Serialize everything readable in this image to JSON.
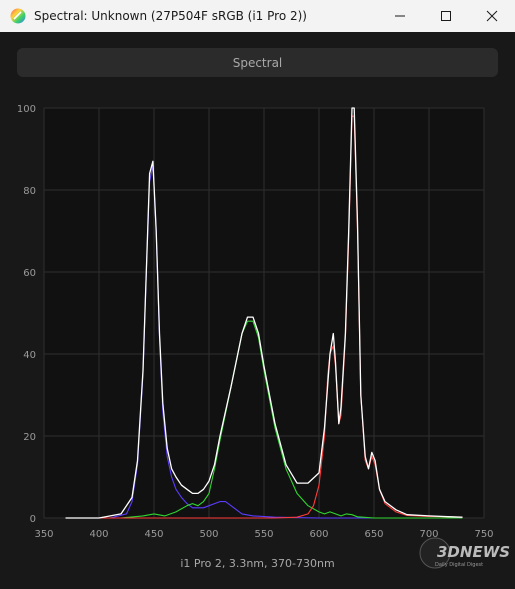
{
  "window": {
    "title": "Spectral: Unknown (27P504F sRGB (i1 Pro 2))",
    "icon": "spectral-app-icon",
    "controls": [
      "minimize-icon",
      "maximize-icon",
      "close-icon"
    ]
  },
  "header": {
    "label": "Spectral"
  },
  "caption": "i1 Pro 2, 3.3nm, 370-730nm",
  "watermark": {
    "main": "3DNEWS",
    "sub": "Daily Digital Digest"
  },
  "colors": {
    "background": "#181818",
    "plot_background": "#111111",
    "grid": "#2e2e2e",
    "total": "#ffffff",
    "blue": "#5a3cff",
    "green": "#2fd62f",
    "red": "#ff3a3a"
  },
  "chart_data": {
    "type": "line",
    "title": "",
    "xlabel": "",
    "ylabel": "",
    "xlim": [
      350,
      750
    ],
    "ylim": [
      0,
      100
    ],
    "grid": true,
    "x_ticks": [
      "350",
      "400",
      "450",
      "500",
      "550",
      "600",
      "650",
      "700",
      "750"
    ],
    "y_ticks": [
      "0",
      "20",
      "40",
      "60",
      "80",
      "100"
    ],
    "series": [
      {
        "color": "#ffffff",
        "x": [
          370,
          400,
          420,
          430,
          435,
          440,
          443,
          446,
          449,
          452,
          455,
          458,
          462,
          466,
          470,
          475,
          480,
          485,
          490,
          495,
          500,
          505,
          510,
          520,
          530,
          535,
          540,
          545,
          550,
          560,
          570,
          580,
          590,
          600,
          605,
          610,
          613,
          615,
          618,
          620,
          624,
          627,
          630,
          632,
          635,
          638,
          642,
          645,
          648,
          651,
          655,
          660,
          670,
          680,
          700,
          720,
          730
        ],
        "y": [
          0,
          0,
          1,
          5,
          14,
          36,
          60,
          84,
          87,
          70,
          45,
          28,
          17,
          12,
          10,
          8,
          7,
          6,
          6,
          7,
          9,
          13,
          20,
          32,
          45,
          49,
          49,
          45,
          37,
          23,
          13,
          8.5,
          8.5,
          11,
          22,
          40,
          45,
          38,
          23,
          27,
          45,
          70,
          100,
          100,
          72,
          30,
          15,
          12,
          16,
          14,
          7,
          4,
          2,
          0.8,
          0.5,
          0.3,
          0.2
        ]
      },
      {
        "color": "#5a3cff",
        "x": [
          370,
          410,
          425,
          430,
          435,
          440,
          443,
          446,
          449,
          452,
          455,
          458,
          462,
          466,
          470,
          475,
          480,
          485,
          490,
          495,
          500,
          505,
          510,
          515,
          520,
          525,
          530,
          540,
          560,
          600,
          730
        ],
        "y": [
          0,
          0,
          1,
          4,
          13,
          35,
          60,
          82,
          86,
          70,
          44,
          26,
          15,
          10,
          7,
          5,
          3.5,
          2.5,
          2.5,
          2.5,
          3,
          3.5,
          4,
          4,
          3,
          2,
          1,
          0.5,
          0.2,
          0,
          0
        ]
      },
      {
        "color": "#2fd62f",
        "x": [
          370,
          420,
          440,
          450,
          460,
          470,
          480,
          485,
          490,
          495,
          500,
          505,
          510,
          520,
          530,
          535,
          540,
          545,
          550,
          560,
          570,
          580,
          590,
          600,
          605,
          610,
          615,
          620,
          625,
          630,
          635,
          640,
          650,
          730
        ],
        "y": [
          0,
          0,
          0.5,
          1,
          0.5,
          1.5,
          3,
          3.5,
          3,
          4,
          6,
          12,
          19,
          32,
          45,
          48,
          48,
          44,
          36,
          22,
          12,
          6,
          3,
          1.5,
          1,
          1.5,
          1,
          0.5,
          1,
          0.8,
          0.3,
          0.2,
          0,
          0
        ]
      },
      {
        "color": "#ff3a3a",
        "x": [
          370,
          560,
          580,
          590,
          595,
          600,
          605,
          608,
          610,
          613,
          615,
          618,
          620,
          624,
          627,
          630,
          632,
          635,
          638,
          642,
          645,
          648,
          651,
          655,
          660,
          670,
          680,
          700,
          720,
          730
        ],
        "y": [
          0,
          0,
          0.2,
          1,
          3,
          8,
          20,
          35,
          40,
          42,
          37,
          23,
          25,
          44,
          68,
          98,
          98,
          70,
          30,
          14,
          12,
          15,
          13,
          7,
          3.5,
          1.5,
          0.6,
          0.4,
          0.3,
          0.2
        ]
      }
    ]
  }
}
